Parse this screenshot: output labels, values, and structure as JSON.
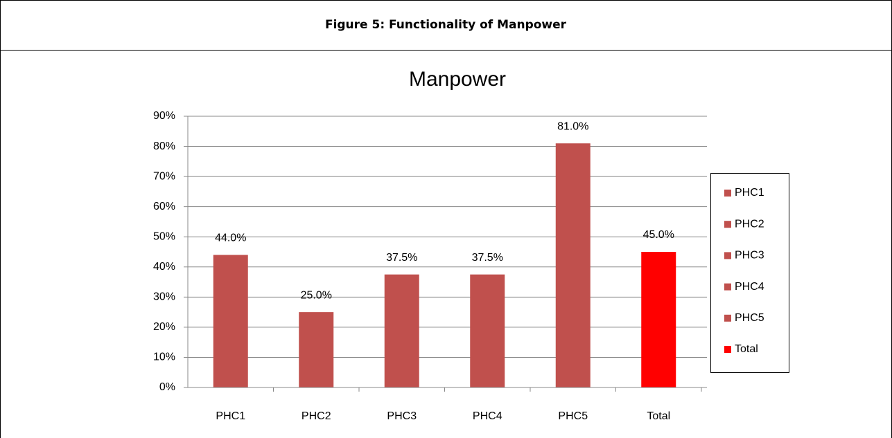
{
  "caption": "Figure 5: Functionality of Manpower",
  "chart_data": {
    "type": "bar",
    "title": "Manpower",
    "categories": [
      "PHC1",
      "PHC2",
      "PHC3",
      "PHC4",
      "PHC5",
      "Total"
    ],
    "values": [
      44,
      25,
      37.5,
      37.5,
      81,
      45
    ],
    "value_labels": [
      "44.0%",
      "25.0%",
      "37.5%",
      "37.5%",
      "81.0%",
      "45.0%"
    ],
    "colors": [
      "#c0504d",
      "#c0504d",
      "#c0504d",
      "#c0504d",
      "#c0504d",
      "#ff0000"
    ],
    "ylim": [
      0,
      90
    ],
    "yticks": [
      {
        "value": 0,
        "label": "0%"
      },
      {
        "value": 10,
        "label": "10%"
      },
      {
        "value": 20,
        "label": "20%"
      },
      {
        "value": 30,
        "label": "30%"
      },
      {
        "value": 40,
        "label": "40%"
      },
      {
        "value": 50,
        "label": "50%"
      },
      {
        "value": 60,
        "label": "60%"
      },
      {
        "value": 70,
        "label": "70%"
      },
      {
        "value": 80,
        "label": "80%"
      },
      {
        "value": 90,
        "label": "90%"
      }
    ],
    "grid": true,
    "legend": "right"
  }
}
